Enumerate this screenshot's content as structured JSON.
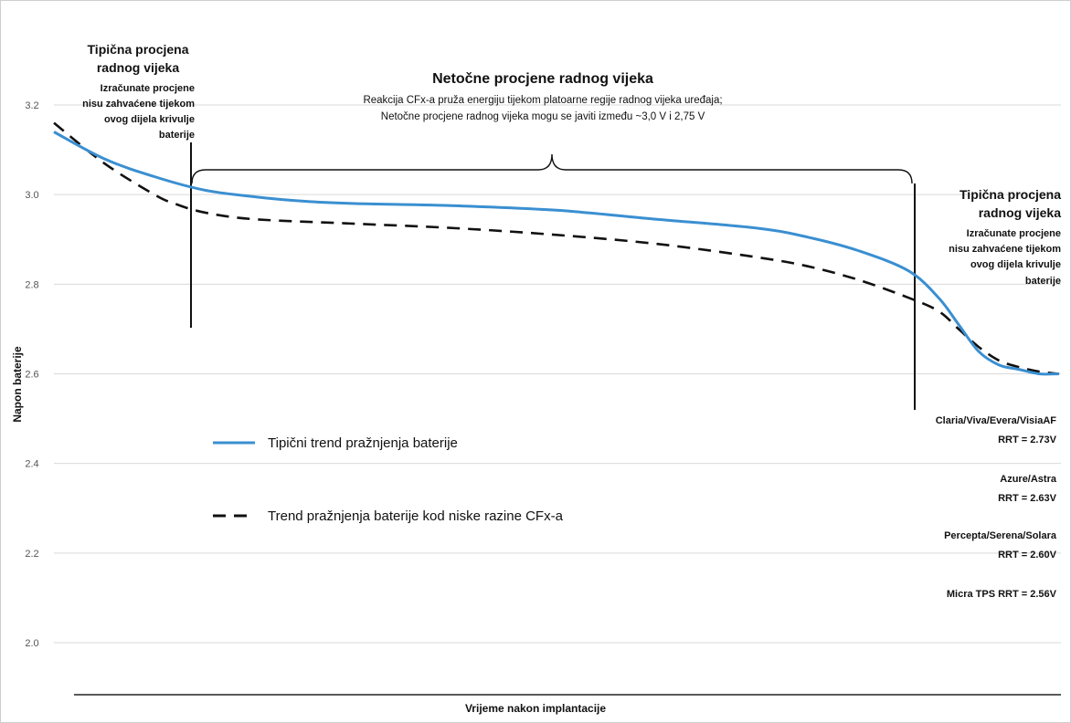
{
  "chart_data": {
    "type": "line",
    "xlabel": "Vrijeme nakon implantacije",
    "ylabel": "Napon baterije",
    "ylim": [
      1.9,
      3.25
    ],
    "y_ticks": [
      "3.2",
      "3.0",
      "2.8",
      "2.6",
      "2.4",
      "2.2",
      "2.0"
    ],
    "grid": true,
    "series": [
      {
        "name": "Tipični trend pražnjenja baterije",
        "color": "#3a8fd1",
        "dash": "solid",
        "x": [
          0,
          0.05,
          0.1,
          0.15,
          0.2,
          0.25,
          0.3,
          0.4,
          0.5,
          0.6,
          0.7,
          0.75,
          0.8,
          0.85,
          0.88,
          0.9,
          0.92,
          0.94,
          0.96,
          0.98,
          1.0
        ],
        "values": [
          3.14,
          3.08,
          3.04,
          3.01,
          2.995,
          2.985,
          2.98,
          2.975,
          2.965,
          2.945,
          2.925,
          2.905,
          2.875,
          2.83,
          2.77,
          2.71,
          2.65,
          2.62,
          2.61,
          2.6,
          2.6
        ]
      },
      {
        "name": "Trend pražnjenja baterije kod niske razine CFx-a",
        "color": "#111111",
        "dash": "dashed",
        "x": [
          0,
          0.05,
          0.1,
          0.12,
          0.15,
          0.2,
          0.3,
          0.4,
          0.5,
          0.6,
          0.7,
          0.75,
          0.8,
          0.85,
          0.88,
          0.9,
          0.92,
          0.94,
          0.96,
          0.98,
          1.0
        ],
        "values": [
          3.16,
          3.07,
          3.0,
          2.98,
          2.96,
          2.945,
          2.935,
          2.925,
          2.91,
          2.89,
          2.86,
          2.84,
          2.81,
          2.77,
          2.74,
          2.7,
          2.66,
          2.63,
          2.615,
          2.605,
          2.6
        ]
      }
    ],
    "annotations": {
      "left": {
        "heading": [
          "Tipična procjena",
          "radnog vijeka"
        ],
        "body": [
          "Izračunate procjene",
          "nisu zahvaćene tijekom",
          "ovog dijela krivulje",
          "baterije"
        ]
      },
      "middle": {
        "heading": "Netočne procjene radnog vijeka",
        "body": [
          "Reakcija CFx-a pruža energiju tijekom platoarne regije radnog vijeka uređaja;",
          "Netočne procjene radnog vijeka mogu se javiti između ~3,0 V i 2,75 V"
        ]
      },
      "right": {
        "heading": [
          "Tipična procjena",
          "radnog vijeka"
        ],
        "body": [
          "Izračunate procjene",
          "nisu zahvaćene tijekom",
          "ovog dijela krivulje",
          "baterije"
        ]
      }
    },
    "rrt_labels": [
      [
        "Claria/Viva/Evera/VisiaAF",
        "RRT = 2.73V"
      ],
      [
        "Azure/Astra",
        "RRT = 2.63V"
      ],
      [
        "Percepta/Serena/Solara",
        "RRT = 2.60V"
      ],
      [
        "Micra TPS RRT = 2.56V"
      ]
    ]
  }
}
